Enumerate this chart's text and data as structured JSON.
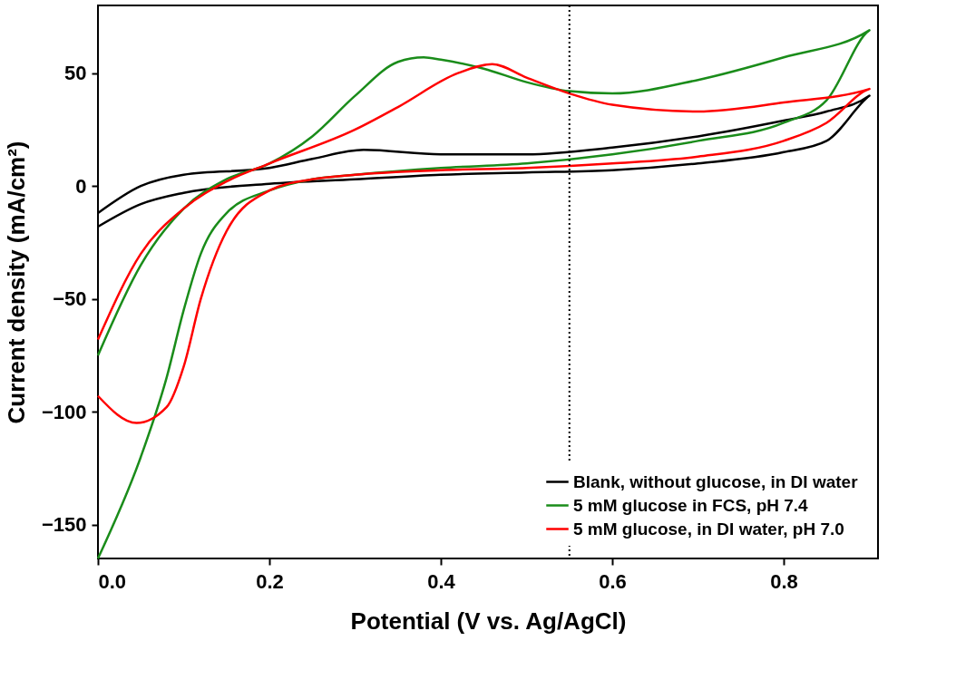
{
  "chart_data": {
    "type": "line",
    "xlabel": "Potential (V vs. Ag/AgCl)",
    "ylabel": "Current density (mA/cm²)",
    "xlim": [
      0,
      0.91
    ],
    "ylim": [
      -165,
      80
    ],
    "xticks": [
      {
        "value": 0,
        "label": "0.0"
      },
      {
        "value": 0.2,
        "label": "0.2"
      },
      {
        "value": 0.4,
        "label": "0.4"
      },
      {
        "value": 0.6,
        "label": "0.6"
      },
      {
        "value": 0.8,
        "label": "0.8"
      }
    ],
    "yticks": [
      -150,
      -100,
      -50,
      0,
      50
    ],
    "grid": false,
    "legend": "bottom right",
    "marker": "none",
    "line_style": "solid",
    "ref_lines": [
      {
        "axis": "x",
        "value": 0.55,
        "color": "#000000",
        "line_style": "dotted"
      }
    ],
    "series": [
      {
        "name": "Blank, without glucose, in DI water",
        "color": "#000000",
        "x": [
          0,
          0.05,
          0.1,
          0.2,
          0.3,
          0.4,
          0.5,
          0.6,
          0.7,
          0.8,
          0.85,
          0.9,
          0.9,
          0.85,
          0.8,
          0.7,
          0.6,
          0.5,
          0.4,
          0.31,
          0.25,
          0.2,
          0.1,
          0.05,
          0
        ],
        "values": [
          -18,
          -8,
          -3,
          1,
          3,
          5,
          6,
          7,
          10,
          15,
          20,
          40,
          40,
          33,
          29,
          22,
          17,
          14,
          14,
          16,
          12,
          8,
          5,
          0,
          -12
        ]
      },
      {
        "name": "5 mM glucose in FCS, pH 7.4",
        "color": "#1a8c1a",
        "x": [
          0,
          0.05,
          0.08,
          0.1,
          0.12,
          0.15,
          0.2,
          0.25,
          0.3,
          0.4,
          0.5,
          0.6,
          0.7,
          0.8,
          0.85,
          0.9,
          0.8,
          0.7,
          0.6,
          0.55,
          0.5,
          0.45,
          0.4,
          0.38,
          0.35,
          0.3,
          0.25,
          0.2,
          0.15,
          0.1,
          0.05,
          0
        ],
        "values": [
          -165,
          -120,
          -85,
          -55,
          -30,
          -12,
          -2,
          3,
          5,
          8,
          10,
          14,
          20,
          28,
          38,
          69,
          57,
          47,
          41,
          42,
          46,
          52,
          56,
          57,
          55,
          40,
          22,
          10,
          3,
          -10,
          -35,
          -75
        ]
      },
      {
        "name": "5 mM glucose, in DI water, pH 7.0",
        "color": "#ff0000",
        "x": [
          0,
          0.045,
          0.08,
          0.1,
          0.12,
          0.15,
          0.2,
          0.25,
          0.3,
          0.4,
          0.5,
          0.6,
          0.7,
          0.8,
          0.85,
          0.9,
          0.8,
          0.7,
          0.6,
          0.55,
          0.5,
          0.46,
          0.42,
          0.35,
          0.3,
          0.2,
          0.15,
          0.1,
          0.05,
          0
        ],
        "values": [
          -93,
          -105,
          -98,
          -80,
          -50,
          -20,
          -2,
          3,
          5,
          7,
          8,
          10,
          13,
          20,
          28,
          43,
          37,
          33,
          36,
          41,
          48,
          54,
          50,
          35,
          25,
          10,
          2,
          -10,
          -30,
          -68
        ]
      }
    ]
  }
}
